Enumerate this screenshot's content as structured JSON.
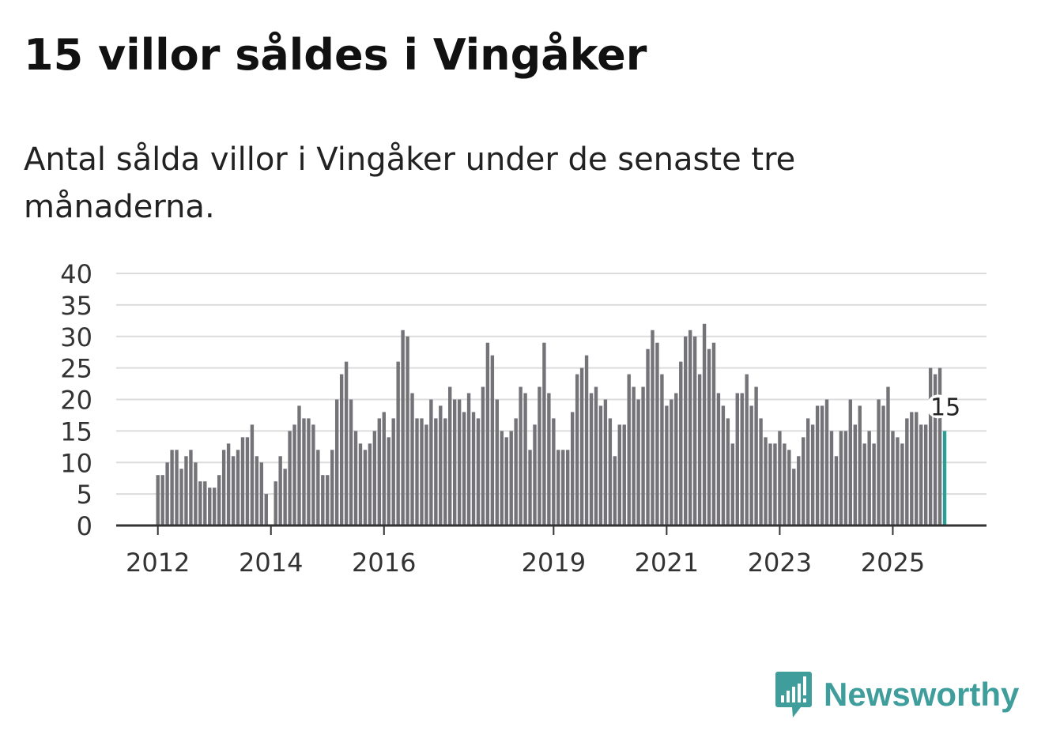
{
  "title": "15 villor såldes i Vingåker",
  "subtitle": "Antal sålda villor i Vingåker under de senaste tre månaderna.",
  "brand": {
    "name": "Newsworthy",
    "logo_icon": "newsworthy-logo-icon"
  },
  "colors": {
    "bar": "#747478",
    "highlight": "#2a9d95",
    "grid": "#dcdcdc",
    "axis": "#333333",
    "brand": "#3f9e9c"
  },
  "chart_data": {
    "type": "bar",
    "title": "15 villor såldes i Vingåker",
    "xlabel": "",
    "ylabel": "",
    "ylim": [
      0,
      40
    ],
    "y_ticks": [
      0,
      5,
      10,
      15,
      20,
      25,
      30,
      35,
      40
    ],
    "start_year": 2012,
    "x_tick_labels": [
      "2012",
      "2014",
      "2016",
      "2019",
      "2021",
      "2023",
      "2025"
    ],
    "values": [
      8,
      8,
      10,
      12,
      12,
      9,
      11,
      12,
      10,
      7,
      7,
      6,
      6,
      8,
      12,
      13,
      11,
      12,
      14,
      14,
      16,
      11,
      10,
      5,
      0,
      7,
      11,
      9,
      15,
      16,
      19,
      17,
      17,
      16,
      12,
      8,
      8,
      12,
      20,
      24,
      26,
      20,
      15,
      13,
      12,
      13,
      15,
      17,
      18,
      14,
      17,
      26,
      31,
      30,
      21,
      17,
      17,
      16,
      20,
      17,
      19,
      17,
      22,
      20,
      20,
      18,
      21,
      18,
      17,
      22,
      29,
      27,
      20,
      15,
      14,
      15,
      17,
      22,
      21,
      12,
      16,
      22,
      29,
      21,
      17,
      12,
      12,
      12,
      18,
      24,
      25,
      27,
      21,
      22,
      19,
      20,
      17,
      11,
      16,
      16,
      24,
      22,
      20,
      22,
      28,
      31,
      29,
      24,
      19,
      20,
      21,
      26,
      30,
      31,
      30,
      24,
      32,
      28,
      29,
      21,
      19,
      17,
      13,
      21,
      21,
      24,
      19,
      22,
      17,
      14,
      13,
      13,
      15,
      13,
      12,
      9,
      11,
      14,
      17,
      16,
      19,
      19,
      20,
      15,
      11,
      15,
      15,
      20,
      16,
      19,
      13,
      15,
      13,
      20,
      19,
      22,
      15,
      14,
      13,
      17,
      18,
      18,
      16,
      16,
      25,
      24,
      25,
      15
    ],
    "highlight_label": "15"
  }
}
